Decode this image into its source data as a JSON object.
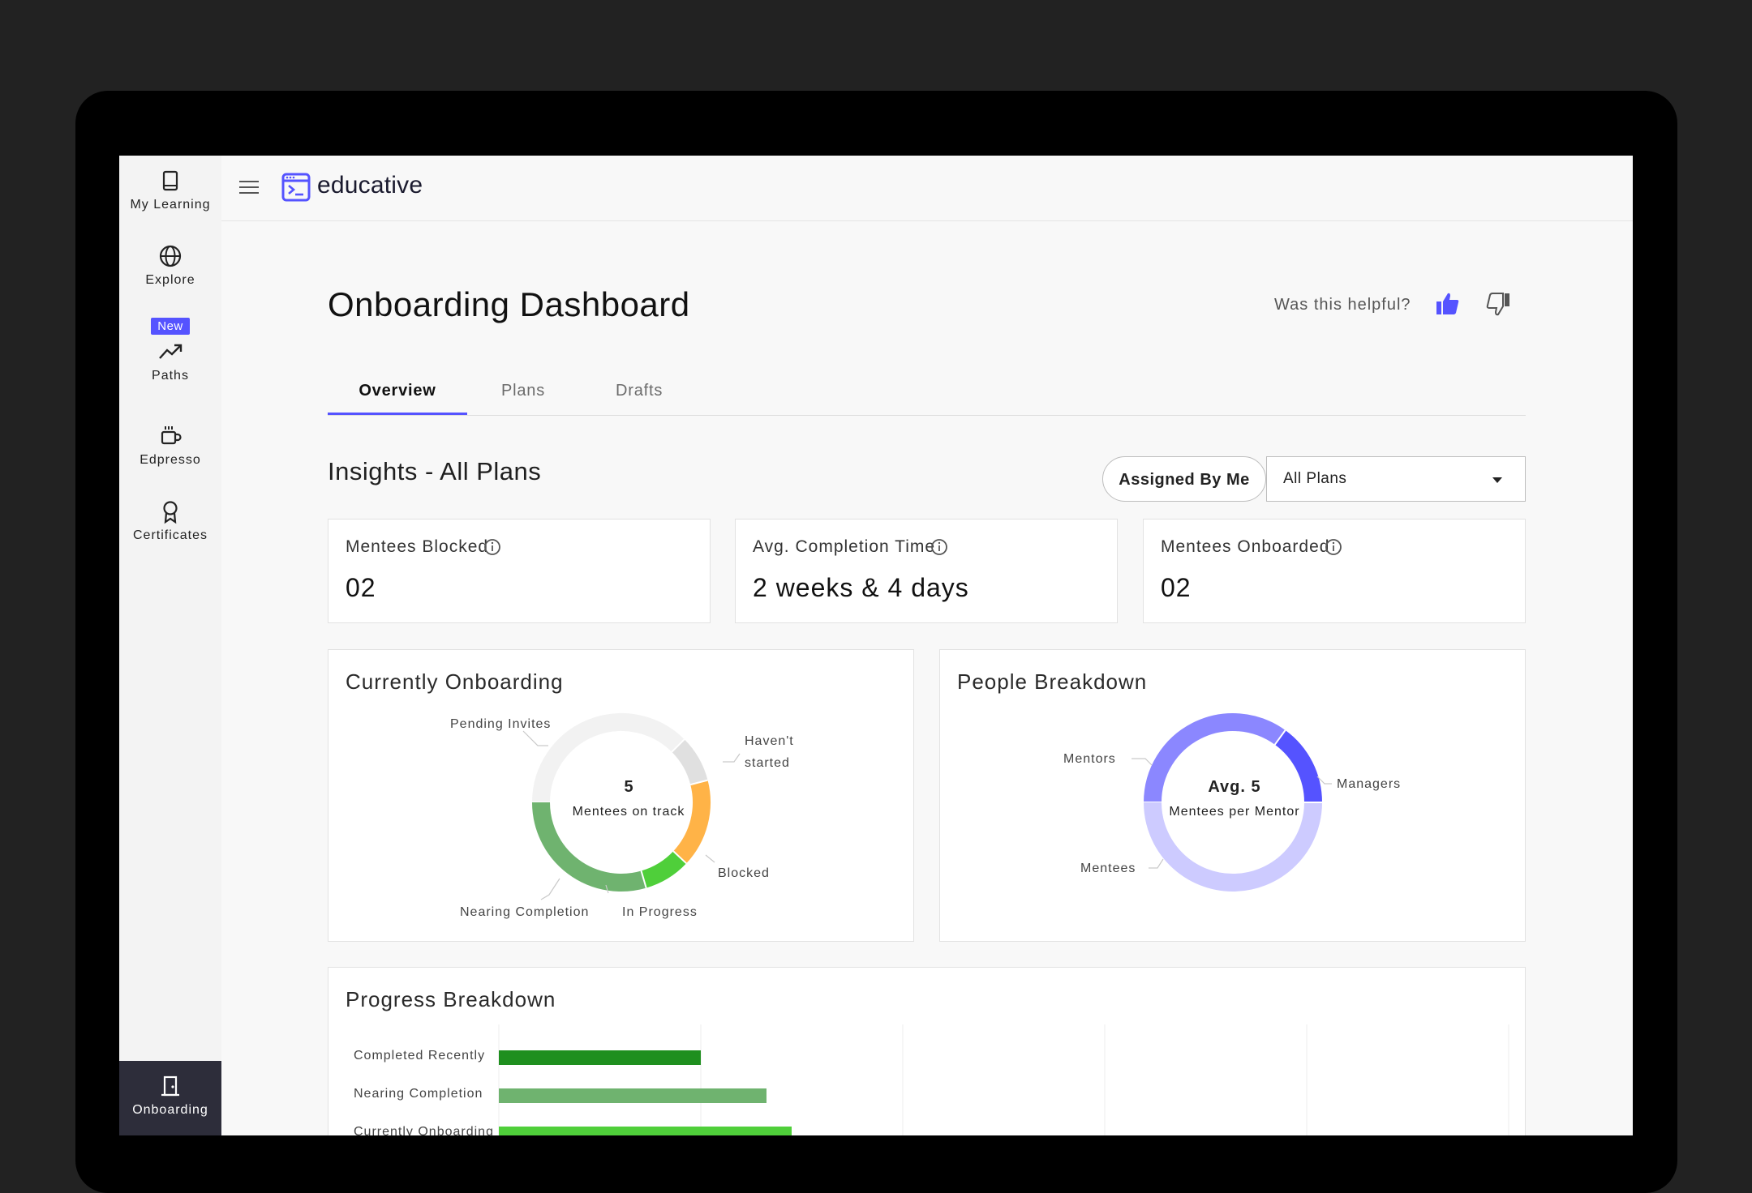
{
  "sidebar": {
    "items": [
      {
        "label": "My Learning",
        "icon": "book-icon"
      },
      {
        "label": "Explore",
        "icon": "globe-icon"
      },
      {
        "label": "Paths",
        "icon": "trending-up-icon",
        "badge": "New"
      },
      {
        "label": "Edpresso",
        "icon": "coffee-cup-icon"
      },
      {
        "label": "Certificates",
        "icon": "award-icon"
      }
    ],
    "active_item": {
      "label": "Onboarding",
      "icon": "door-icon"
    }
  },
  "header": {
    "logo_text": "educative"
  },
  "page": {
    "title": "Onboarding Dashboard",
    "helpful_prompt": "Was this helpful?",
    "tabs": [
      "Overview",
      "Plans",
      "Drafts"
    ],
    "active_tab": "Overview"
  },
  "insights": {
    "title": "Insights - All Plans",
    "filter_button": "Assigned By Me",
    "plan_select": "All Plans"
  },
  "stats": [
    {
      "label": "Mentees Blocked",
      "value": "02"
    },
    {
      "label": "Avg. Completion Time",
      "value": "2 weeks & 4 days"
    },
    {
      "label": "Mentees Onboarded",
      "value": "02"
    }
  ],
  "colors": {
    "accent": "#5553ff",
    "pending": "#f2f2f2",
    "havent_started": "#e0e0e0",
    "blocked": "#ffb347",
    "in_progress": "#4fcf3a",
    "nearing_completion": "#6fb36f",
    "mentors": "#8b87ff",
    "managers": "#5553ff",
    "mentees": "#cdcbff",
    "completed_recently": "#1f8f1f"
  },
  "currently_onboarding": {
    "title": "Currently Onboarding",
    "center_value": "5",
    "center_label": "Mentees on track",
    "chart_data": {
      "type": "pie",
      "categories": [
        "Pending Invites",
        "Haven't started",
        "Blocked",
        "In Progress",
        "Nearing Completion"
      ],
      "values": [
        37.5,
        8.5,
        16,
        8.5,
        29.5
      ],
      "label_lines": [
        "Haven't",
        "started"
      ]
    }
  },
  "people_breakdown": {
    "title": "People Breakdown",
    "center_value": "Avg. 5",
    "center_label": "Mentees per Mentor",
    "chart_data": {
      "type": "pie",
      "categories": [
        "Mentors",
        "Managers",
        "Mentees"
      ],
      "values": [
        35,
        15,
        50
      ]
    }
  },
  "progress_breakdown": {
    "title": "Progress Breakdown",
    "chart_data": {
      "type": "bar",
      "orientation": "horizontal",
      "categories": [
        "Completed Recently",
        "Nearing Completion",
        "Currently Onboarding"
      ],
      "values": [
        4,
        5.3,
        5.8
      ],
      "xlim": [
        0,
        20
      ],
      "grid": true
    }
  }
}
